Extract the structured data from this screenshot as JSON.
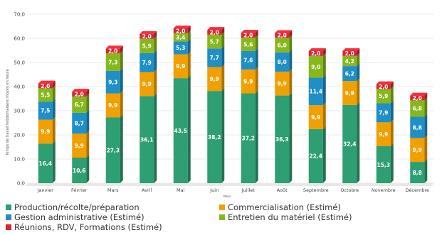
{
  "chart_data": {
    "type": "bar",
    "stacked": true,
    "categories": [
      "Janvier",
      "Février",
      "Mars",
      "Avril",
      "Mai",
      "Juin",
      "Juillet",
      "Août",
      "Septembre",
      "Octobre",
      "Novembre",
      "Décembre"
    ],
    "ylabel": "Temps de travail hebdomadaire moyen en heure",
    "xlabel": "Mois",
    "ylim": [
      0,
      70
    ],
    "yticks": [
      "0,0",
      "10,0",
      "20,0",
      "30,0",
      "40,0",
      "50,0",
      "60,0",
      "70,0"
    ],
    "grid": true,
    "legend_position": "bottom",
    "series": [
      {
        "name": "Production/récolte/préparation",
        "color": "#2e9e73",
        "values": [
          16.4,
          10.6,
          27.3,
          36.1,
          43.5,
          38.2,
          37.2,
          36.3,
          22.4,
          32.4,
          15.3,
          8.8
        ],
        "labels": [
          "16,4",
          "10,6",
          "27,3",
          "36,1",
          "43,5",
          "38,2",
          "37,2",
          "36,3",
          "22,4",
          "32,4",
          "15,3",
          "8,8"
        ]
      },
      {
        "name": "Commercialisation (Estimé)",
        "color": "#f0a000",
        "values": [
          9.9,
          9.9,
          9.9,
          9.9,
          9.9,
          9.9,
          9.9,
          9.9,
          9.9,
          9.9,
          9.9,
          9.9
        ],
        "labels": [
          "9,9",
          "9,9",
          "9,9",
          "9,9",
          "9,9",
          "9,9",
          "9,9",
          "9,9",
          "9,9",
          "9,9",
          "9,9",
          "9,9"
        ]
      },
      {
        "name": "Gestion administrative (Estimé)",
        "color": "#1f8fc6",
        "values": [
          7.5,
          8.7,
          9.3,
          7.9,
          5.3,
          7.7,
          7.6,
          8.0,
          11.4,
          6.2,
          7.9,
          8.8
        ],
        "labels": [
          "7,5",
          "8,7",
          "9,3",
          "7,9",
          "5,3",
          "7,7",
          "7,6",
          "8,0",
          "11,4",
          "6,2",
          "7,9",
          "8,8"
        ]
      },
      {
        "name": "Entretien du matériel (Estimé)",
        "color": "#86b81b",
        "values": [
          5.5,
          6.7,
          7.3,
          5.9,
          3.4,
          5.7,
          5.6,
          6.0,
          9.0,
          4.2,
          5.9,
          6.8
        ],
        "labels": [
          "5,5",
          "6,7",
          "7,3",
          "5,9",
          "3,4",
          "5,7",
          "5,6",
          "6,0",
          "9,0",
          "4,2",
          "5,9",
          "6,8"
        ]
      },
      {
        "name": "Réunions, RDV, Formations (Estimé)",
        "color": "#d92632",
        "values": [
          2.0,
          2.0,
          2.0,
          2.0,
          2.0,
          2.0,
          2.0,
          2.0,
          2.0,
          2.0,
          2.0,
          2.0
        ],
        "labels": [
          "2,0",
          "2,0",
          "2,0",
          "2,0",
          "2,0",
          "2,0",
          "2,0",
          "2,0",
          "2,0",
          "2,0",
          "2,0",
          "2,0"
        ]
      }
    ]
  }
}
